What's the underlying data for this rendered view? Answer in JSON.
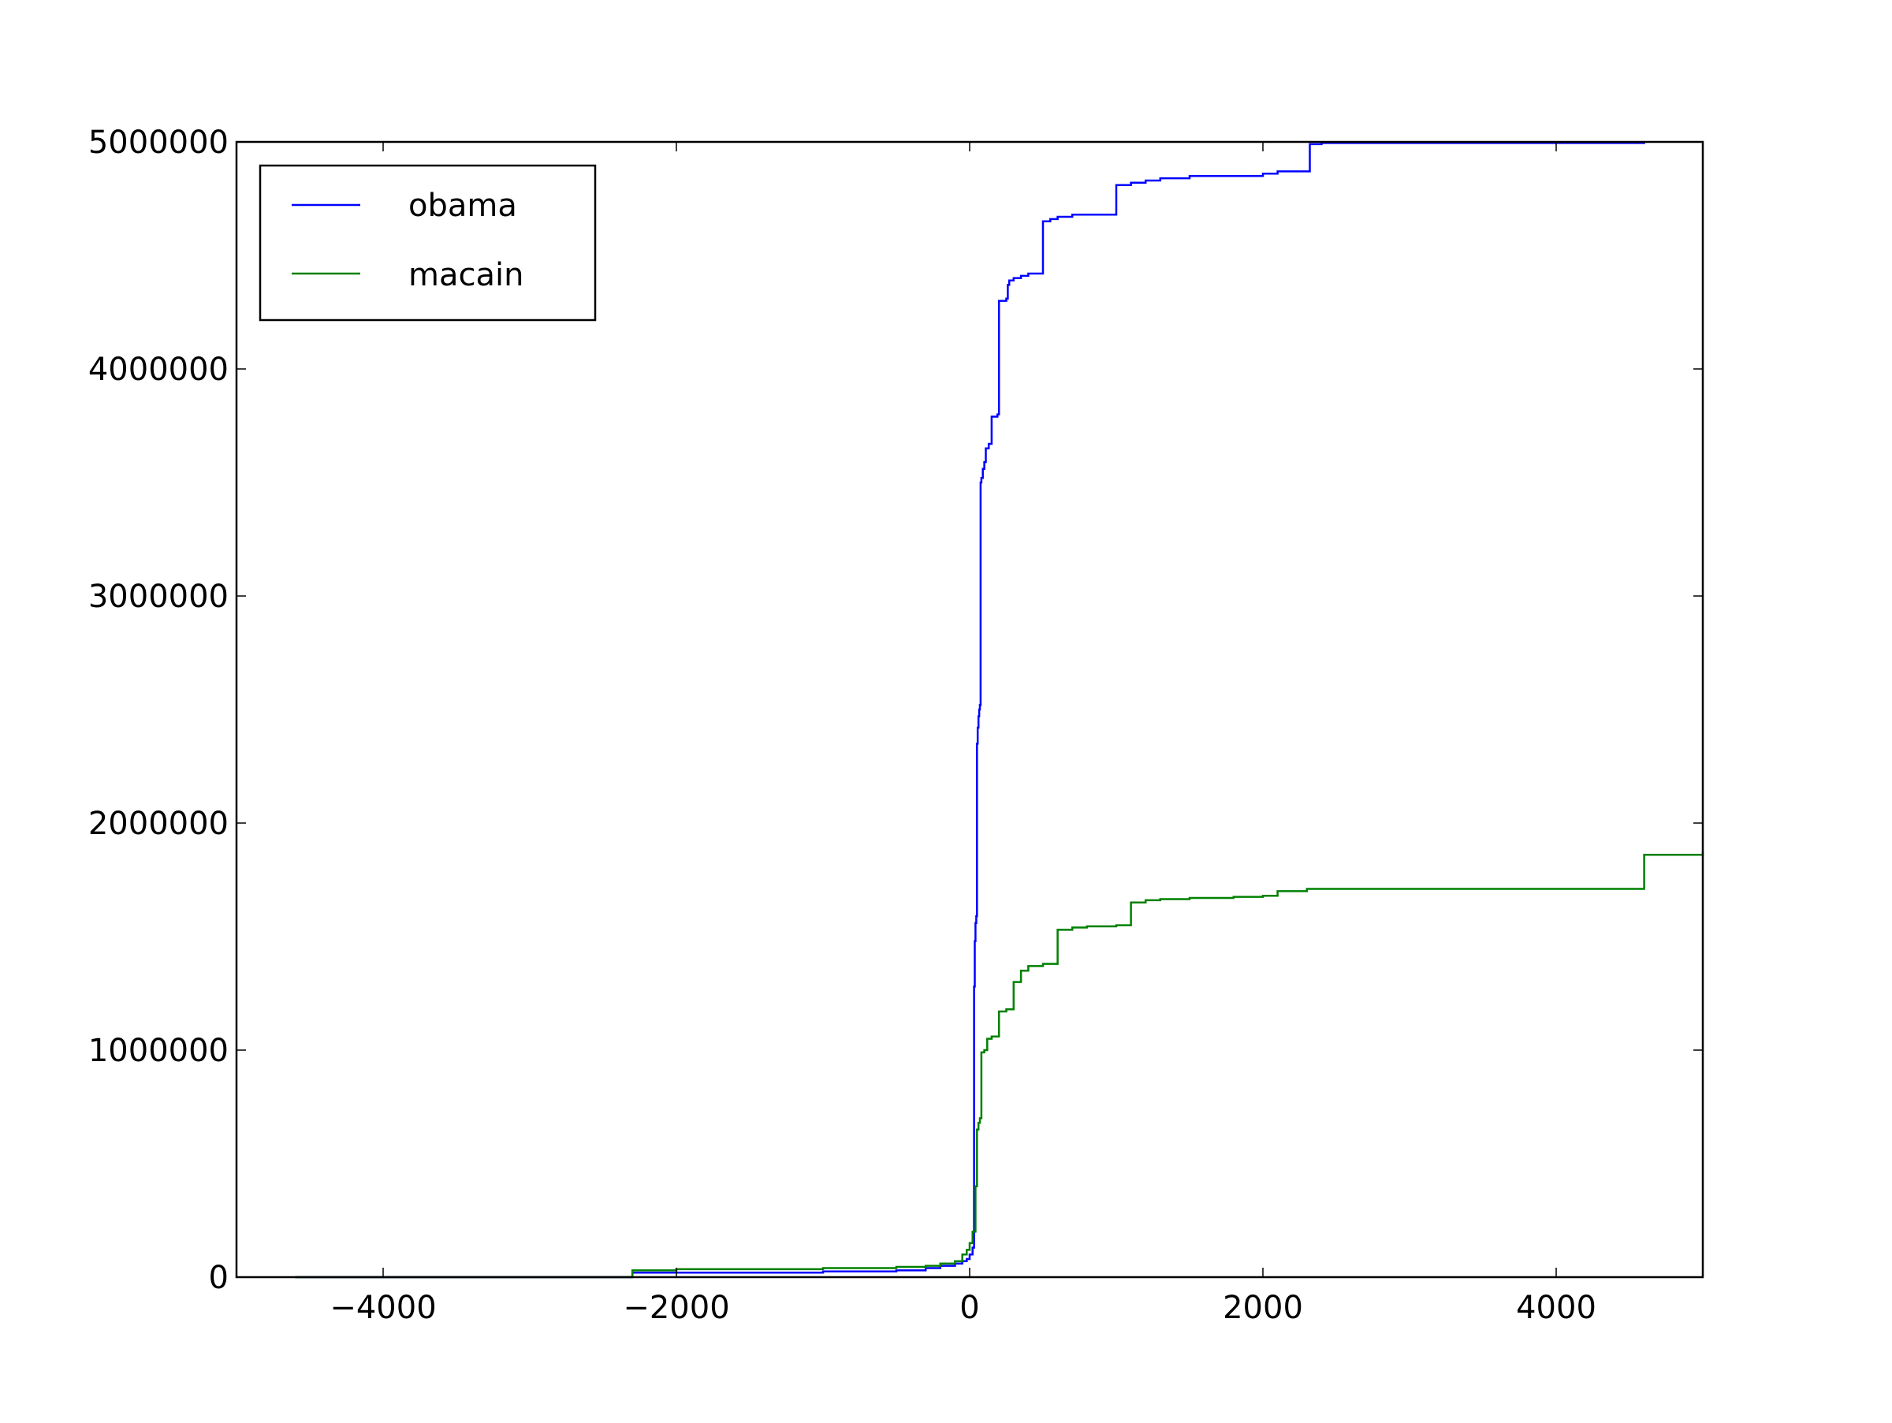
{
  "chart_data": {
    "type": "line",
    "title": "",
    "xlabel": "",
    "ylabel": "",
    "xlim": [
      -5000,
      5000
    ],
    "ylim": [
      0,
      5000000
    ],
    "xticks": [
      -4000,
      -2000,
      0,
      2000,
      4000
    ],
    "xtick_labels": [
      "−4000",
      "−2000",
      "0",
      "2000",
      "4000"
    ],
    "yticks": [
      0,
      1000000,
      2000000,
      3000000,
      4000000,
      5000000
    ],
    "ytick_labels": [
      "0",
      "1000000",
      "2000000",
      "3000000",
      "4000000",
      "5000000"
    ],
    "grid": false,
    "legend": "upper-left",
    "step": true,
    "series": [
      {
        "name": "obama",
        "color": "#0000ff",
        "x": [
          -4600,
          -2300,
          -2000,
          -1000,
          -500,
          -300,
          -200,
          -100,
          -50,
          -20,
          0,
          20,
          30,
          35,
          40,
          45,
          50,
          55,
          60,
          65,
          70,
          75,
          80,
          90,
          100,
          110,
          130,
          150,
          190,
          200,
          250,
          260,
          270,
          300,
          350,
          400,
          420,
          440,
          460,
          480,
          500,
          550,
          600,
          700,
          800,
          1000,
          1100,
          1200,
          1300,
          1500,
          1600,
          1700,
          1800,
          2000,
          2100,
          2300,
          2320,
          2400,
          3000,
          4000,
          4600
        ],
        "values": [
          0,
          20000,
          20000,
          25000,
          30000,
          40000,
          50000,
          60000,
          70000,
          80000,
          100000,
          130000,
          1280000,
          1480000,
          1560000,
          1590000,
          2350000,
          2420000,
          2470000,
          2500000,
          2520000,
          3500000,
          3520000,
          3560000,
          3590000,
          3650000,
          3670000,
          3790000,
          3800000,
          4300000,
          4310000,
          4370000,
          4390000,
          4400000,
          4410000,
          4420000,
          4420000,
          4420000,
          4420000,
          4420000,
          4650000,
          4660000,
          4670000,
          4680000,
          4680000,
          4810000,
          4820000,
          4830000,
          4840000,
          4850000,
          4850000,
          4850000,
          4850000,
          4860000,
          4870000,
          4870000,
          4990000,
          4995000,
          4995000,
          4995000,
          5000000
        ]
      },
      {
        "name": "macain",
        "color": "#008000",
        "x": [
          -4600,
          -2300,
          -2000,
          -1000,
          -500,
          -300,
          -200,
          -100,
          -50,
          -20,
          0,
          20,
          40,
          50,
          60,
          70,
          80,
          100,
          120,
          150,
          200,
          250,
          300,
          350,
          400,
          500,
          600,
          700,
          800,
          1000,
          1100,
          1200,
          1300,
          1500,
          1800,
          2000,
          2100,
          2300,
          4600,
          5000
        ],
        "values": [
          0,
          30000,
          35000,
          40000,
          45000,
          50000,
          60000,
          70000,
          100000,
          120000,
          150000,
          200000,
          400000,
          650000,
          680000,
          700000,
          990000,
          1000000,
          1050000,
          1060000,
          1170000,
          1180000,
          1300000,
          1350000,
          1370000,
          1380000,
          1530000,
          1540000,
          1545000,
          1550000,
          1650000,
          1660000,
          1665000,
          1670000,
          1675000,
          1680000,
          1700000,
          1710000,
          1860000,
          1870000
        ]
      }
    ]
  }
}
